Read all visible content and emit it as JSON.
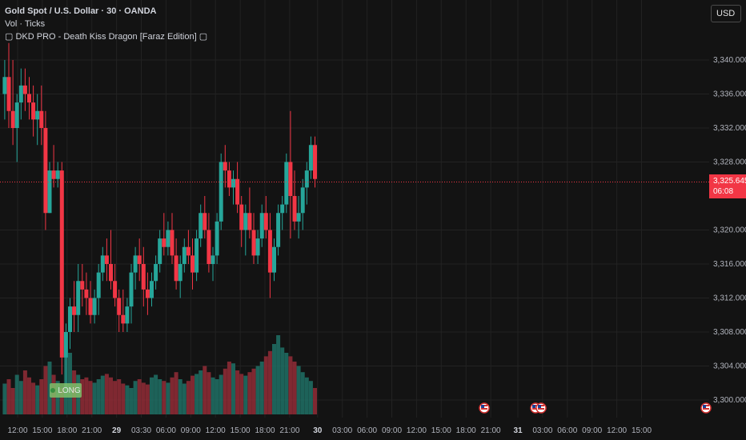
{
  "legend": {
    "symbol": "Gold Spot / U.S. Dollar · 30 · OANDA",
    "volume": "Vol · Ticks",
    "indicator": "▢ DKD PRO - Death Kiss Dragon [Faraz Edition] ▢"
  },
  "currency_button": "USD",
  "current_price": {
    "value": "3,325.645",
    "countdown": "06:08"
  },
  "signal_label": "LONG",
  "price_axis": [
    "3,340.000",
    "3,336.000",
    "3,332.000",
    "3,328.000",
    "3,320.000",
    "3,316.000",
    "3,312.000",
    "3,308.000",
    "3,304.000",
    "3,300.000"
  ],
  "time_axis": [
    {
      "label": "12:00",
      "bold": false
    },
    {
      "label": "15:00",
      "bold": false
    },
    {
      "label": "18:00",
      "bold": false
    },
    {
      "label": "21:00",
      "bold": false
    },
    {
      "label": "29",
      "bold": true
    },
    {
      "label": "03:30",
      "bold": false
    },
    {
      "label": "06:00",
      "bold": false
    },
    {
      "label": "09:00",
      "bold": false
    },
    {
      "label": "12:00",
      "bold": false
    },
    {
      "label": "15:00",
      "bold": false
    },
    {
      "label": "18:00",
      "bold": false
    },
    {
      "label": "21:00",
      "bold": false
    },
    {
      "label": "30",
      "bold": true
    },
    {
      "label": "03:00",
      "bold": false
    },
    {
      "label": "06:00",
      "bold": false
    },
    {
      "label": "09:00",
      "bold": false
    },
    {
      "label": "12:00",
      "bold": false
    },
    {
      "label": "15:00",
      "bold": false
    },
    {
      "label": "18:00",
      "bold": false
    },
    {
      "label": "21:00",
      "bold": false
    },
    {
      "label": "31",
      "bold": true
    },
    {
      "label": "03:00",
      "bold": false
    },
    {
      "label": "06:00",
      "bold": false
    },
    {
      "label": "09:00",
      "bold": false
    },
    {
      "label": "12:00",
      "bold": false
    },
    {
      "label": "15:00",
      "bold": false
    }
  ],
  "event_flags": [
    "us-flag-icon",
    "us-flag-icon",
    "us-flag-icon",
    "us-flag-icon"
  ],
  "colors": {
    "up": "#26a69a",
    "down": "#f23645",
    "background": "#131313",
    "grid": "#222222"
  },
  "chart_data": {
    "type": "candlestick",
    "title": "Gold Spot / U.S. Dollar · 30 · OANDA",
    "ylim": [
      3298,
      3346
    ],
    "candles": [
      [
        3336,
        3340,
        3333,
        3338
      ],
      [
        3338,
        3342,
        3332,
        3334
      ],
      [
        3334,
        3340,
        3330,
        3332
      ],
      [
        3332,
        3336,
        3328,
        3335
      ],
      [
        3335,
        3339,
        3333,
        3337
      ],
      [
        3337,
        3339,
        3334,
        3336
      ],
      [
        3336,
        3338,
        3333,
        3335
      ],
      [
        3335,
        3337,
        3331,
        3333
      ],
      [
        3333,
        3336,
        3330,
        3334
      ],
      [
        3334,
        3337,
        3330,
        3332
      ],
      [
        3332,
        3334,
        3320,
        3322
      ],
      [
        3322,
        3328,
        3322,
        3327
      ],
      [
        3327,
        3330,
        3325,
        3326
      ],
      [
        3326,
        3328,
        3325,
        3327
      ],
      [
        3327,
        3328,
        3303,
        3305
      ],
      [
        3305,
        3309,
        3301,
        3308
      ],
      [
        3308,
        3312,
        3306,
        3311
      ],
      [
        3311,
        3314,
        3308,
        3310
      ],
      [
        3310,
        3316,
        3308,
        3314
      ],
      [
        3314,
        3316,
        3311,
        3313
      ],
      [
        3313,
        3315,
        3310,
        3312
      ],
      [
        3312,
        3314,
        3309,
        3310
      ],
      [
        3310,
        3313,
        3309,
        3312
      ],
      [
        3312,
        3316,
        3310,
        3315
      ],
      [
        3315,
        3318,
        3314,
        3317
      ],
      [
        3317,
        3319,
        3314,
        3316
      ],
      [
        3316,
        3320,
        3313,
        3314
      ],
      [
        3314,
        3316,
        3311,
        3312
      ],
      [
        3312,
        3313,
        3308,
        3310
      ],
      [
        3310,
        3313,
        3308,
        3309
      ],
      [
        3309,
        3312,
        3308,
        3311
      ],
      [
        3311,
        3316,
        3309,
        3315
      ],
      [
        3315,
        3318,
        3313,
        3317
      ],
      [
        3317,
        3319,
        3314,
        3316
      ],
      [
        3316,
        3318,
        3311,
        3313
      ],
      [
        3313,
        3315,
        3310,
        3312
      ],
      [
        3312,
        3315,
        3311,
        3314
      ],
      [
        3314,
        3317,
        3313,
        3316
      ],
      [
        3316,
        3320,
        3315,
        3319
      ],
      [
        3319,
        3322,
        3317,
        3318
      ],
      [
        3318,
        3321,
        3317,
        3320
      ],
      [
        3320,
        3322,
        3316,
        3317
      ],
      [
        3317,
        3319,
        3313,
        3314
      ],
      [
        3314,
        3317,
        3312,
        3316
      ],
      [
        3316,
        3319,
        3315,
        3318
      ],
      [
        3318,
        3320,
        3316,
        3317
      ],
      [
        3317,
        3319,
        3313,
        3315
      ],
      [
        3315,
        3320,
        3314,
        3319
      ],
      [
        3319,
        3323,
        3318,
        3322
      ],
      [
        3322,
        3324,
        3319,
        3320
      ],
      [
        3320,
        3322,
        3315,
        3316
      ],
      [
        3316,
        3318,
        3314,
        3317
      ],
      [
        3317,
        3322,
        3316,
        3321
      ],
      [
        3321,
        3329,
        3320,
        3328
      ],
      [
        3328,
        3330,
        3325,
        3327
      ],
      [
        3327,
        3328,
        3324,
        3325
      ],
      [
        3325,
        3327,
        3323,
        3326
      ],
      [
        3326,
        3328,
        3322,
        3323
      ],
      [
        3323,
        3324,
        3318,
        3320
      ],
      [
        3320,
        3323,
        3317,
        3322
      ],
      [
        3322,
        3325,
        3319,
        3320
      ],
      [
        3320,
        3322,
        3316,
        3317
      ],
      [
        3317,
        3320,
        3316,
        3319
      ],
      [
        3319,
        3323,
        3318,
        3322
      ],
      [
        3322,
        3324,
        3319,
        3320
      ],
      [
        3320,
        3322,
        3312,
        3315
      ],
      [
        3315,
        3319,
        3314,
        3318
      ],
      [
        3318,
        3323,
        3317,
        3322
      ],
      [
        3322,
        3324,
        3320,
        3323
      ],
      [
        3323,
        3329,
        3322,
        3328
      ],
      [
        3328,
        3334,
        3319,
        3324
      ],
      [
        3324,
        3327,
        3320,
        3321
      ],
      [
        3321,
        3324,
        3319,
        3322
      ],
      [
        3322,
        3326,
        3320,
        3325
      ],
      [
        3325,
        3328,
        3323,
        3327
      ],
      [
        3327,
        3331,
        3326,
        3330
      ],
      [
        3330,
        3331,
        3325,
        3326
      ]
    ],
    "volume_max": 100,
    "volumes": [
      35,
      40,
      30,
      45,
      38,
      50,
      42,
      36,
      33,
      40,
      55,
      60,
      45,
      38,
      30,
      65,
      70,
      50,
      45,
      40,
      42,
      38,
      36,
      40,
      44,
      46,
      42,
      38,
      40,
      35,
      33,
      30,
      38,
      40,
      36,
      34,
      42,
      45,
      40,
      38,
      36,
      42,
      48,
      40,
      35,
      38,
      44,
      46,
      50,
      55,
      48,
      42,
      40,
      45,
      52,
      60,
      58,
      50,
      46,
      44,
      48,
      52,
      55,
      60,
      66,
      72,
      80,
      90,
      76,
      70,
      66,
      60,
      55,
      48,
      42,
      38,
      30
    ]
  }
}
